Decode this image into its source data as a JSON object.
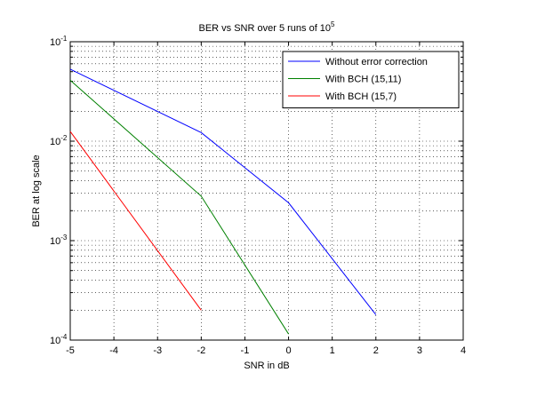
{
  "chart_data": {
    "type": "line",
    "title": {
      "main": "BER vs SNR over 5 runs of 10",
      "superscript": "5"
    },
    "xlabel": "SNR in dB",
    "ylabel": "BER at log scale",
    "xlim": [
      -5,
      4
    ],
    "ylim": [
      0.0001,
      0.1
    ],
    "yscale": "log",
    "grid": "on (major and minor, dotted)",
    "legend_position": "top-right",
    "x_ticks": [
      "-5",
      "-4",
      "-3",
      "-2",
      "-1",
      "0",
      "1",
      "2",
      "3",
      "4"
    ],
    "y_ticks": [
      {
        "base": "10",
        "exp": "-4"
      },
      {
        "base": "10",
        "exp": "-3"
      },
      {
        "base": "10",
        "exp": "-2"
      },
      {
        "base": "10",
        "exp": "-1"
      }
    ],
    "series": [
      {
        "name": "Without error correction",
        "color": "#0000ff",
        "x": [
          -5,
          -2,
          0,
          2
        ],
        "y": [
          0.053,
          0.0122,
          0.0024,
          0.00018
        ]
      },
      {
        "name": "With BCH (15,11)",
        "color": "#008000",
        "x": [
          -5,
          -2,
          0
        ],
        "y": [
          0.041,
          0.0028,
          0.000115
        ]
      },
      {
        "name": "With BCH (15,7)",
        "color": "#ff0000",
        "x": [
          -5,
          -2
        ],
        "y": [
          0.0125,
          0.0002
        ]
      }
    ]
  }
}
